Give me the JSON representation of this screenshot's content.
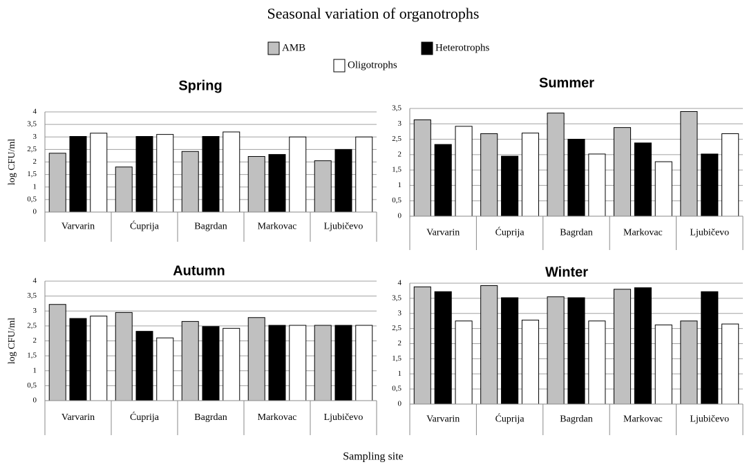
{
  "title": "Seasonal variation of organotrophs",
  "xlabel": "Sampling site",
  "chart_data": [
    {
      "type": "bar",
      "title": "Spring",
      "ylabel": "log CFU/ml",
      "categories": [
        "Varvarin",
        "Ćuprija",
        "Bagrdan",
        "Markovac",
        "Ljubičevo"
      ],
      "series": [
        {
          "name": "AMB",
          "color": "#c0c0c0",
          "values": [
            2.35,
            1.8,
            2.42,
            2.22,
            2.05
          ]
        },
        {
          "name": "Heterotrophs",
          "color": "#000000",
          "values": [
            3.02,
            3.02,
            3.02,
            2.3,
            2.5
          ]
        },
        {
          "name": "Oligotrophs",
          "color": "#ffffff",
          "values": [
            3.15,
            3.1,
            3.2,
            3.0,
            3.0
          ]
        }
      ],
      "ylim": [
        0,
        4
      ],
      "yticks": [
        0,
        {
          "value": 0.5,
          "label": "0,5"
        },
        1,
        {
          "value": 1.5,
          "label": "1,5"
        },
        2,
        {
          "value": 2.5,
          "label": "2,5"
        },
        3,
        {
          "value": 3.5,
          "label": "3,5"
        },
        4
      ],
      "grid": true
    },
    {
      "type": "bar",
      "title": "Summer",
      "categories": [
        "Varvarin",
        "Ćuprija",
        "Bagrdan",
        "Markovac",
        "Ljubičevo"
      ],
      "series": [
        {
          "name": "AMB",
          "color": "#c0c0c0",
          "values": [
            3.13,
            2.68,
            3.35,
            2.88,
            3.4
          ]
        },
        {
          "name": "Heterotrophs",
          "color": "#000000",
          "values": [
            2.33,
            1.95,
            2.5,
            2.38,
            2.02
          ]
        },
        {
          "name": "Oligotrophs",
          "color": "#ffffff",
          "values": [
            2.92,
            2.7,
            2.02,
            1.77,
            2.68
          ]
        }
      ],
      "ylim": [
        0,
        3.5
      ],
      "yticks": [
        0,
        {
          "value": 0.5,
          "label": "0,5"
        },
        1,
        {
          "value": 1.5,
          "label": "1,5"
        },
        2,
        {
          "value": 2.5,
          "label": "2,5"
        },
        3,
        {
          "value": 3.5,
          "label": "3,5"
        }
      ],
      "grid": true
    },
    {
      "type": "bar",
      "title": "Autumn",
      "ylabel": "log CFU/ml",
      "categories": [
        "Varvarin",
        "Ćuprija",
        "Bagrdan",
        "Markovac",
        "Ljubičevo"
      ],
      "series": [
        {
          "name": "AMB",
          "color": "#c0c0c0",
          "values": [
            3.22,
            2.95,
            2.65,
            2.78,
            2.52
          ]
        },
        {
          "name": "Heterotrophs",
          "color": "#000000",
          "values": [
            2.75,
            2.32,
            2.48,
            2.52,
            2.52
          ]
        },
        {
          "name": "Oligotrophs",
          "color": "#ffffff",
          "values": [
            2.83,
            2.1,
            2.42,
            2.52,
            2.52
          ]
        }
      ],
      "ylim": [
        0,
        4
      ],
      "yticks": [
        0,
        {
          "value": 0.5,
          "label": "0,5"
        },
        1,
        {
          "value": 1.5,
          "label": "1,5"
        },
        2,
        {
          "value": 2.5,
          "label": "2,5"
        },
        3,
        {
          "value": 3.5,
          "label": "3,5"
        },
        4
      ],
      "grid": true
    },
    {
      "type": "bar",
      "title": "Winter",
      "categories": [
        "Varvarin",
        "Ćuprija",
        "Bagrdan",
        "Markovac",
        "Ljubičevo"
      ],
      "series": [
        {
          "name": "AMB",
          "color": "#c0c0c0",
          "values": [
            3.88,
            3.92,
            3.55,
            3.8,
            2.75
          ]
        },
        {
          "name": "Heterotrophs",
          "color": "#000000",
          "values": [
            3.72,
            3.52,
            3.52,
            3.85,
            3.72
          ]
        },
        {
          "name": "Oligotrophs",
          "color": "#ffffff",
          "values": [
            2.75,
            2.78,
            2.75,
            2.62,
            2.65
          ]
        }
      ],
      "ylim": [
        0,
        4
      ],
      "yticks": [
        0,
        {
          "value": 0.5,
          "label": "0,5"
        },
        1,
        {
          "value": 1.5,
          "label": "1,5"
        },
        2,
        {
          "value": 2.5,
          "label": "2,5"
        },
        3,
        {
          "value": 3.5,
          "label": "3,5"
        },
        4
      ],
      "grid": true
    }
  ]
}
